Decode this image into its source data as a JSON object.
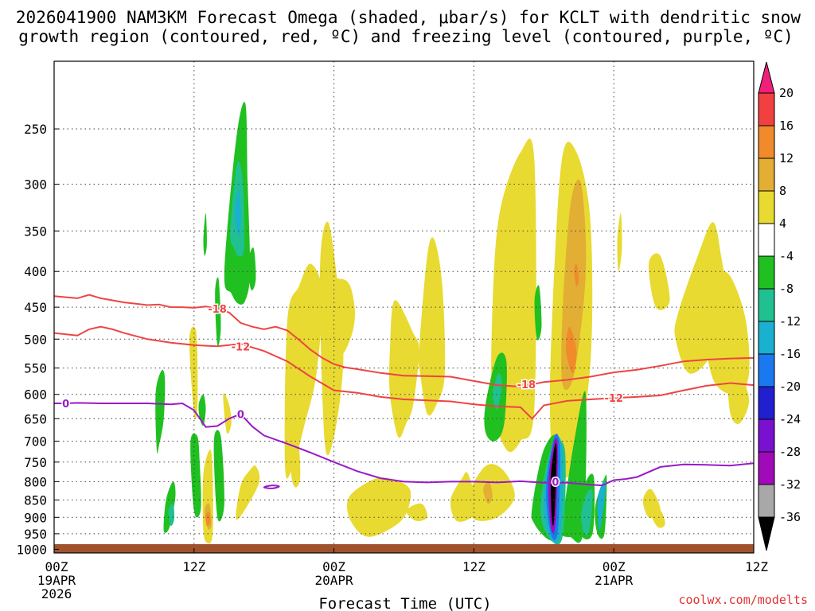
{
  "chart_data": {
    "type": "time-height contour",
    "title_line1": "2026041900 NAM3KM Forecast Omega (shaded, μbar/s) for KCLT with dendritic snow",
    "title_line2": "growth region (contoured, red, ºC) and freezing level (contoured, purple, ºC)",
    "xlabel": "Forecast Time (UTC)",
    "credit": "coolwx.com/modelts",
    "x_ticks": [
      {
        "hour": 0,
        "lines": [
          "00Z",
          "19APR",
          "2026"
        ]
      },
      {
        "hour": 12,
        "lines": [
          "12Z"
        ]
      },
      {
        "hour": 24,
        "lines": [
          "00Z",
          "20APR"
        ]
      },
      {
        "hour": 36,
        "lines": [
          "12Z"
        ]
      },
      {
        "hour": 48,
        "lines": [
          "00Z",
          "21APR"
        ]
      },
      {
        "hour": 60,
        "lines": [
          "12Z"
        ]
      }
    ],
    "xlim_hours": [
      0,
      60
    ],
    "y_ticks": [
      "250",
      "300",
      "350",
      "400",
      "450",
      "500",
      "550",
      "600",
      "650",
      "700",
      "750",
      "800",
      "850",
      "900",
      "950",
      "1000"
    ],
    "ylim_hpa": [
      200,
      1012
    ],
    "colorbar": {
      "labels": [
        "20",
        "16",
        "12",
        "8",
        "4",
        "-4",
        "-8",
        "-12",
        "-16",
        "-20",
        "-24",
        "-28",
        "-32",
        "-36"
      ],
      "bins": [
        {
          "color": "#f0207a"
        },
        {
          "color": "#f24040"
        },
        {
          "color": "#f08a2a"
        },
        {
          "color": "#e2ae33"
        },
        {
          "color": "#e8da30"
        },
        {
          "color": "#ffffff"
        },
        {
          "color": "#20c020"
        },
        {
          "color": "#20c090"
        },
        {
          "color": "#1ab0d0"
        },
        {
          "color": "#1a78f0"
        },
        {
          "color": "#2020d0"
        },
        {
          "color": "#7a10d0"
        },
        {
          "color": "#a00ab8"
        },
        {
          "color": "#a8a8a8"
        },
        {
          "color": "#000000"
        }
      ]
    },
    "contour_labels": {
      "dgz_cold": "-18",
      "dgz_warm": "-12",
      "freezing": "0"
    },
    "series": [
      {
        "name": "-18C isotherm (DGZ top)",
        "color": "#ee4444",
        "x": [
          0,
          2,
          3,
          4,
          5,
          6,
          7,
          8,
          9,
          10,
          11,
          12,
          13,
          14,
          15,
          16,
          17,
          18,
          19,
          20,
          21,
          22,
          23,
          24,
          25,
          26,
          28,
          30,
          32,
          34,
          36,
          38,
          40,
          42,
          44,
          46,
          48,
          50,
          52,
          54,
          56,
          58,
          60
        ],
        "y": [
          434,
          437,
          432,
          437,
          440,
          443,
          445,
          447,
          446,
          450,
          450,
          451,
          449,
          452,
          458,
          474,
          480,
          484,
          480,
          486,
          501,
          518,
          532,
          543,
          549,
          552,
          559,
          564,
          565,
          566,
          574,
          582,
          585,
          576,
          572,
          566,
          558,
          553,
          546,
          538,
          535,
          533,
          532
        ]
      },
      {
        "name": "-12C isotherm (DGZ bottom)",
        "color": "#ee4444",
        "x": [
          0,
          2,
          3,
          4,
          5,
          6,
          8,
          10,
          12,
          14,
          16,
          18,
          20,
          22,
          24,
          26,
          28,
          30,
          32,
          34,
          36,
          38,
          40,
          41,
          42,
          44,
          46,
          48,
          50,
          52,
          54,
          56,
          58,
          60
        ],
        "y": [
          490,
          494,
          484,
          480,
          484,
          490,
          500,
          506,
          510,
          512,
          508,
          520,
          538,
          566,
          592,
          597,
          605,
          610,
          612,
          614,
          620,
          624,
          626,
          650,
          622,
          613,
          610,
          607,
          605,
          602,
          592,
          583,
          578,
          582
        ]
      },
      {
        "name": "0C isotherm (freezing level)",
        "color": "#9a1ac8",
        "x": [
          0,
          1,
          2,
          4,
          6,
          8,
          10,
          11,
          12,
          13,
          14,
          15,
          16,
          17,
          18,
          20,
          22,
          24,
          26,
          28,
          30,
          32,
          34,
          36,
          38,
          40,
          42,
          44,
          46,
          47,
          48,
          49,
          50,
          52,
          54,
          56,
          58,
          60
        ],
        "y": [
          618,
          618,
          617,
          618,
          618,
          618,
          620,
          618,
          632,
          668,
          666,
          650,
          640,
          667,
          687,
          706,
          727,
          750,
          773,
          791,
          800,
          802,
          800,
          800,
          802,
          799,
          803,
          803,
          808,
          810,
          796,
          793,
          788,
          762,
          756,
          757,
          759,
          753
        ]
      }
    ],
    "omega_patches": [
      {
        "bin": 6,
        "x": [
          14.6,
          15.6,
          16.4,
          16.6,
          16.8,
          16.4,
          15.8,
          15.2
        ],
        "y": [
          400,
          260,
          230,
          300,
          400,
          440,
          445,
          430
        ]
      },
      {
        "bin": 7,
        "x": [
          15.1,
          15.7,
          16.2,
          16.3,
          15.8,
          15.4
        ],
        "y": [
          350,
          280,
          300,
          370,
          380,
          370
        ]
      },
      {
        "bin": 8,
        "x": [
          15.5,
          15.8,
          16.0,
          15.9,
          15.7
        ],
        "y": [
          330,
          305,
          330,
          355,
          350
        ]
      },
      {
        "bin": 6,
        "x": [
          16.6,
          17.1,
          17.3,
          16.9
        ],
        "y": [
          390,
          370,
          410,
          425
        ]
      },
      {
        "bin": 6,
        "x": [
          12.8,
          13.0,
          13.1,
          12.9
        ],
        "y": [
          360,
          330,
          365,
          380
        ]
      },
      {
        "bin": 6,
        "x": [
          13.8,
          14.1,
          14.3,
          14.0
        ],
        "y": [
          430,
          410,
          480,
          510
        ]
      },
      {
        "bin": 6,
        "x": [
          8.7,
          9.2,
          9.5,
          9.4,
          9.0,
          8.8
        ],
        "y": [
          600,
          555,
          570,
          650,
          710,
          720
        ]
      },
      {
        "bin": 6,
        "x": [
          12.4,
          12.8,
          13.0,
          12.8,
          12.5
        ],
        "y": [
          620,
          600,
          630,
          665,
          650
        ]
      },
      {
        "bin": 6,
        "x": [
          9.6,
          10.2,
          10.4,
          9.9,
          9.4
        ],
        "y": [
          850,
          800,
          840,
          930,
          940
        ]
      },
      {
        "bin": 7,
        "x": [
          9.8,
          10.2,
          10.3,
          10.0
        ],
        "y": [
          880,
          860,
          905,
          925
        ]
      },
      {
        "bin": 6,
        "x": [
          11.7,
          12.3,
          12.5,
          12.6,
          12.2,
          11.9
        ],
        "y": [
          700,
          690,
          760,
          870,
          900,
          850
        ]
      },
      {
        "bin": 6,
        "x": [
          13.7,
          14.3,
          14.6,
          14.0
        ],
        "y": [
          700,
          690,
          860,
          900
        ]
      },
      {
        "bin": 4,
        "x": [
          11.6,
          12.2,
          12.3,
          12.0
        ],
        "y": [
          500,
          490,
          620,
          640
        ]
      },
      {
        "bin": 4,
        "x": [
          12.8,
          13.4,
          13.6,
          13.6,
          13.2,
          12.8
        ],
        "y": [
          780,
          720,
          790,
          950,
          980,
          940
        ]
      },
      {
        "bin": 3,
        "x": [
          12.9,
          13.3,
          13.5,
          13.2
        ],
        "y": [
          880,
          860,
          920,
          935
        ]
      },
      {
        "bin": 2,
        "x": [
          13.0,
          13.3,
          13.4,
          13.1
        ],
        "y": [
          895,
          885,
          915,
          925
        ]
      },
      {
        "bin": 4,
        "x": [
          14.5,
          15.0,
          15.2,
          14.8
        ],
        "y": [
          600,
          620,
          660,
          680
        ]
      },
      {
        "bin": 4,
        "x": [
          16.0,
          16.8,
          17.3,
          17.6,
          16.5,
          15.6
        ],
        "y": [
          810,
          770,
          760,
          800,
          870,
          905
        ]
      },
      {
        "bin": 4,
        "x": [
          20.0,
          20.8,
          21.1,
          20.4
        ],
        "y": [
          610,
          660,
          790,
          795
        ]
      },
      {
        "bin": 4,
        "x": [
          20.0,
          21.0,
          22.0,
          23.0,
          22.5,
          21.5,
          20.5,
          19.8
        ],
        "y": [
          470,
          420,
          390,
          430,
          560,
          660,
          760,
          760
        ]
      },
      {
        "bin": 4,
        "x": [
          22.8,
          23.5,
          24.4,
          24.8,
          24.0,
          23.2
        ],
        "y": [
          400,
          340,
          430,
          540,
          690,
          700
        ]
      },
      {
        "bin": 4,
        "x": [
          23.8,
          24.6,
          25.4,
          25.8,
          25.4,
          24.5
        ],
        "y": [
          420,
          410,
          420,
          460,
          500,
          520
        ]
      },
      {
        "bin": 4,
        "x": [
          25.3,
          27.0,
          28.5,
          30.5,
          30.0,
          28.0,
          26.5,
          25.3
        ],
        "y": [
          842,
          800,
          790,
          820,
          900,
          950,
          955,
          900
        ]
      },
      {
        "bin": 4,
        "x": [
          30.2,
          31.5,
          32.0,
          31.0
        ],
        "y": [
          880,
          860,
          900,
          910
        ]
      },
      {
        "bin": 4,
        "x": [
          28.8,
          29.2,
          30.8,
          31.3,
          30.8,
          30.2,
          29.5,
          28.8
        ],
        "y": [
          520,
          440,
          490,
          520,
          620,
          660,
          690,
          600
        ]
      },
      {
        "bin": 4,
        "x": [
          31.3,
          32.0,
          32.6,
          33.3,
          33.5,
          32.8,
          32.0,
          31.4
        ],
        "y": [
          520,
          380,
          360,
          420,
          560,
          620,
          640,
          560
        ]
      },
      {
        "bin": 4,
        "x": [
          34.0,
          35.0,
          35.5,
          36.2,
          35.8,
          34.5
        ],
        "y": [
          850,
          790,
          780,
          860,
          900,
          910
        ]
      },
      {
        "bin": 4,
        "x": [
          35.5,
          37.0,
          38.5,
          39.5,
          38.0,
          36.0
        ],
        "y": [
          840,
          760,
          770,
          840,
          900,
          905
        ]
      },
      {
        "bin": 3,
        "x": [
          36.8,
          37.3,
          37.6,
          37.2
        ],
        "y": [
          820,
          800,
          840,
          860
        ]
      },
      {
        "bin": 4,
        "x": [
          37.6,
          38.2,
          40.0,
          41.2,
          41.2,
          40.0,
          38.8,
          37.6
        ],
        "y": [
          450,
          330,
          270,
          280,
          620,
          700,
          720,
          620
        ]
      },
      {
        "bin": 6,
        "x": [
          37.0,
          38.0,
          38.8,
          38.6,
          37.8,
          37.0
        ],
        "y": [
          620,
          530,
          540,
          660,
          700,
          680
        ]
      },
      {
        "bin": 7,
        "x": [
          37.6,
          38.1,
          38.4,
          38.0
        ],
        "y": [
          600,
          560,
          580,
          630
        ]
      },
      {
        "bin": 6,
        "x": [
          41.2,
          41.6,
          41.8,
          41.4
        ],
        "y": [
          440,
          420,
          480,
          500
        ]
      },
      {
        "bin": 4,
        "x": [
          42.6,
          43.5,
          44.8,
          46.0,
          46.0,
          44.6,
          43.0,
          42.6
        ],
        "y": [
          520,
          280,
          270,
          340,
          540,
          760,
          780,
          700
        ]
      },
      {
        "bin": 3,
        "x": [
          43.6,
          44.3,
          45.2,
          45.6,
          44.6,
          43.6
        ],
        "y": [
          460,
          320,
          300,
          400,
          560,
          580
        ]
      },
      {
        "bin": 2,
        "x": [
          43.9,
          44.2,
          44.8,
          44.5
        ],
        "y": [
          520,
          480,
          520,
          560
        ]
      },
      {
        "bin": 2,
        "x": [
          44.6,
          44.8,
          45.0,
          44.8
        ],
        "y": [
          400,
          390,
          410,
          420
        ]
      },
      {
        "bin": 6,
        "x": [
          41.0,
          42.0,
          43.3,
          43.5,
          42.5,
          41.2
        ],
        "y": [
          870,
          720,
          700,
          950,
          970,
          920
        ]
      },
      {
        "bin": 6,
        "x": [
          43.5,
          44.6,
          45.6,
          45.4,
          44.2,
          43.3
        ],
        "y": [
          930,
          700,
          600,
          940,
          960,
          950
        ]
      },
      {
        "bin": 7,
        "x": [
          41.7,
          42.6,
          43.8,
          43.6,
          42.4
        ],
        "y": [
          870,
          720,
          720,
          960,
          960
        ]
      },
      {
        "bin": 8,
        "x": [
          42.0,
          42.8,
          43.6,
          43.4,
          42.5
        ],
        "y": [
          850,
          700,
          720,
          950,
          960
        ]
      },
      {
        "bin": 9,
        "x": [
          42.2,
          42.9,
          43.4,
          43.2,
          42.6
        ],
        "y": [
          820,
          690,
          720,
          940,
          950
        ]
      },
      {
        "bin": 12,
        "x": [
          42.4,
          42.9,
          43.2,
          43.0,
          42.6
        ],
        "y": [
          800,
          700,
          720,
          920,
          930
        ]
      },
      {
        "bin": 14,
        "x": [
          42.6,
          42.95,
          43.1,
          42.9,
          42.7
        ],
        "y": [
          790,
          710,
          730,
          900,
          910
        ]
      },
      {
        "bin": 6,
        "x": [
          44.9,
          45.6,
          46.3,
          46.2,
          45.3
        ],
        "y": [
          890,
          800,
          790,
          945,
          960
        ]
      },
      {
        "bin": 7,
        "x": [
          45.2,
          45.7,
          46.2,
          45.9,
          45.4
        ],
        "y": [
          890,
          830,
          830,
          940,
          945
        ]
      },
      {
        "bin": 6,
        "x": [
          46.4,
          47.2,
          47.4,
          47.2,
          46.6
        ],
        "y": [
          870,
          790,
          800,
          950,
          950
        ]
      },
      {
        "bin": 8,
        "x": [
          46.6,
          47.1,
          47.3,
          46.8
        ],
        "y": [
          850,
          800,
          820,
          940
        ]
      },
      {
        "bin": 4,
        "x": [
          48.3,
          48.6,
          48.7,
          48.4
        ],
        "y": [
          360,
          330,
          370,
          400
        ]
      },
      {
        "bin": 4,
        "x": [
          51.0,
          52.0,
          52.8,
          51.6
        ],
        "y": [
          390,
          380,
          440,
          450
        ]
      },
      {
        "bin": 4,
        "x": [
          53.5,
          55.2,
          56.5,
          57.2,
          57.5,
          56.5,
          54.5,
          53.3
        ],
        "y": [
          460,
          380,
          340,
          380,
          430,
          520,
          560,
          500
        ]
      },
      {
        "bin": 4,
        "x": [
          55.8,
          57.5,
          59.2,
          59.6,
          58.5,
          56.5
        ],
        "y": [
          460,
          400,
          460,
          560,
          600,
          570
        ]
      },
      {
        "bin": 4,
        "x": [
          57.8,
          58.6,
          59.6,
          58.8,
          58.0
        ],
        "y": [
          560,
          550,
          610,
          660,
          640
        ]
      },
      {
        "bin": 4,
        "x": [
          50.5,
          51.2,
          52.0,
          51.0
        ],
        "y": [
          850,
          820,
          880,
          900
        ]
      },
      {
        "bin": 4,
        "x": [
          51.2,
          52.0,
          52.4,
          51.8
        ],
        "y": [
          890,
          880,
          920,
          930
        ]
      }
    ],
    "surface": {
      "color": "#a0522d",
      "top_hpa": 983
    }
  }
}
